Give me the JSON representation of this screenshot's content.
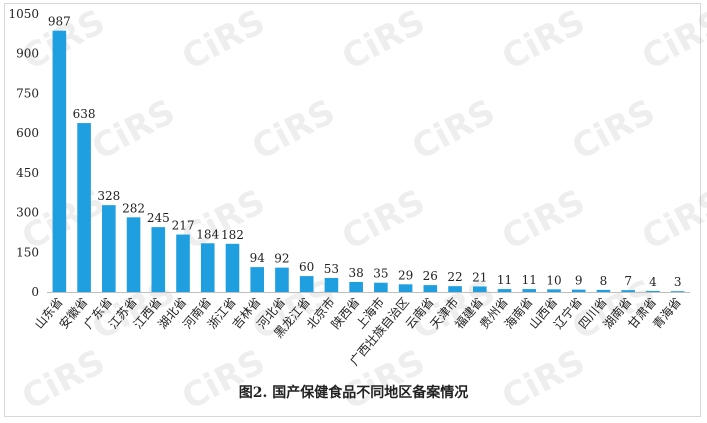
{
  "figure": {
    "caption": "图2. 国产保健食品不同地区备案情况",
    "watermark_text": "CiRS",
    "bar_color": "#1f9ee0"
  },
  "chart_data": {
    "type": "bar",
    "title": "",
    "xlabel": "",
    "ylabel": "",
    "ylim": [
      0,
      1050
    ],
    "yticks": [
      0,
      150,
      300,
      450,
      600,
      750,
      900,
      1050
    ],
    "grid": false,
    "categories": [
      "山东省",
      "安徽省",
      "广东省",
      "江苏省",
      "江西省",
      "湖北省",
      "河南省",
      "浙江省",
      "吉林省",
      "河北省",
      "黑龙江省",
      "北京市",
      "陕西省",
      "上海市",
      "广西壮族自治区",
      "云南省",
      "天津市",
      "福建省",
      "贵州省",
      "海南省",
      "山西省",
      "辽宁省",
      "四川省",
      "湖南省",
      "甘肃省",
      "青海省"
    ],
    "values": [
      987,
      638,
      328,
      282,
      245,
      217,
      184,
      182,
      94,
      92,
      60,
      53,
      38,
      35,
      29,
      26,
      22,
      21,
      11,
      11,
      10,
      9,
      8,
      7,
      4,
      3
    ]
  }
}
